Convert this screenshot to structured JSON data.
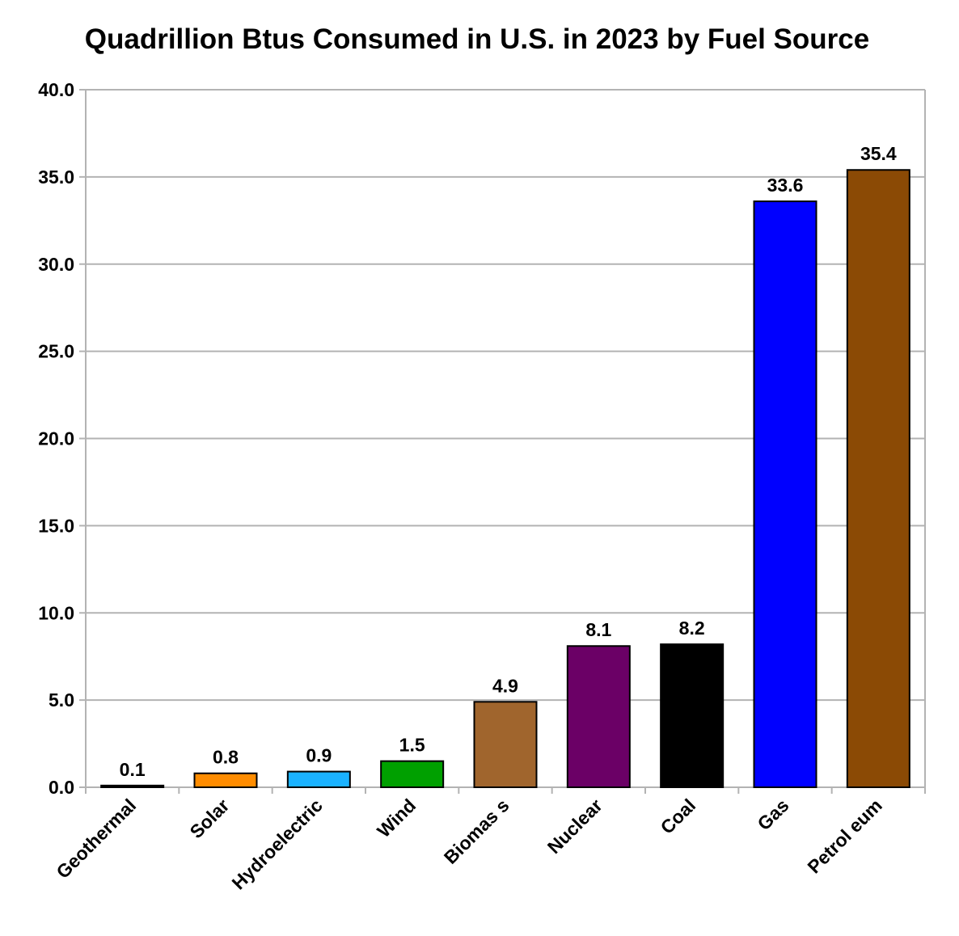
{
  "chart_data": {
    "type": "bar",
    "title": "Quadrillion Btus Consumed in U.S. in 2023 by Fuel Source",
    "xlabel": "",
    "ylabel": "",
    "ylim": [
      0,
      40
    ],
    "y_tick_step": 5,
    "y_tick_labels": [
      "0.0",
      "5.0",
      "10.0",
      "15.0",
      "20.0",
      "25.0",
      "30.0",
      "35.0",
      "40.0"
    ],
    "grid": "horizontal",
    "legend": "none",
    "categories": [
      "Geothermal",
      "Solar",
      "Hydroelectric",
      "Wind",
      "Biomass",
      "Nuclear",
      "Coal",
      "Gas",
      "Petroleum"
    ],
    "category_labels": [
      "Geothermal",
      "Solar",
      "Hydroelectric",
      "Wind",
      "Biomas s",
      "Nuclear",
      "Coal",
      "Gas",
      "Petrol eum"
    ],
    "values": [
      0.1,
      0.8,
      0.9,
      1.5,
      4.9,
      8.1,
      8.2,
      33.6,
      35.4
    ],
    "value_labels": [
      "0.1",
      "0.8",
      "0.9",
      "1.5",
      "4.9",
      "8.1",
      "8.2",
      "33.6",
      "35.4"
    ],
    "colors": [
      "#000000",
      "#ff8c00",
      "#1ab2ff",
      "#00a000",
      "#a0652d",
      "#6b0066",
      "#000000",
      "#0000ff",
      "#8b4a05"
    ]
  }
}
